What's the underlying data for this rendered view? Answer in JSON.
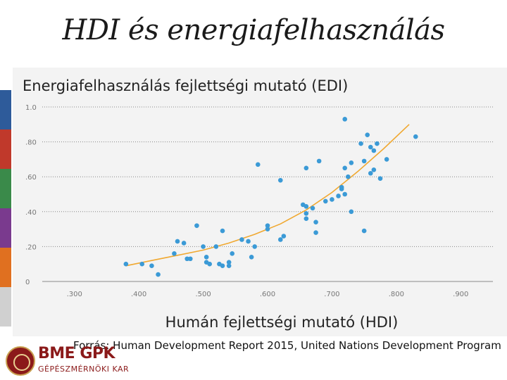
{
  "slide": {
    "title": "HDI és energiafelhasználás",
    "subtitle": "Energiafelhasználás fejlettségi mutató (EDI)",
    "source": "Forrás: Human Development Report 2015, United Nations Development Program"
  },
  "logo": {
    "text_main": "BME GPK",
    "text_sub": "GÉPÉSZMÉRNÖKI KAR"
  },
  "colors": {
    "points": "#3b9ad6",
    "trend": "#f0a830",
    "left_bar": [
      "#2e5b9a",
      "#c0392b",
      "#3a8a4a",
      "#7a3a8e",
      "#e07020",
      "#d0d0d0"
    ]
  },
  "chart_data": {
    "type": "scatter",
    "title": "Energiafelhasználás fejlettségi mutató (EDI)",
    "xlabel": "Humán fejlettségi mutató (HDI)",
    "ylabel": "",
    "xlim": [
      0.25,
      0.95
    ],
    "ylim": [
      0,
      1.0
    ],
    "xticks": [
      0.3,
      0.4,
      0.5,
      0.6,
      0.7,
      0.8,
      0.9
    ],
    "xtick_labels": [
      ".300",
      ".400",
      ".500",
      ".600",
      ".700",
      ".800",
      ".900"
    ],
    "yticks": [
      0,
      0.2,
      0.4,
      0.6,
      0.8,
      1.0
    ],
    "ytick_labels": [
      "0",
      ".20",
      ".40",
      ".60",
      ".80",
      "1.0"
    ],
    "grid": "horizontal dotted",
    "series": [
      {
        "type": "scatter",
        "points": [
          [
            0.38,
            0.1
          ],
          [
            0.405,
            0.1
          ],
          [
            0.42,
            0.09
          ],
          [
            0.43,
            0.04
          ],
          [
            0.455,
            0.16
          ],
          [
            0.46,
            0.23
          ],
          [
            0.47,
            0.22
          ],
          [
            0.475,
            0.13
          ],
          [
            0.48,
            0.13
          ],
          [
            0.49,
            0.32
          ],
          [
            0.5,
            0.2
          ],
          [
            0.505,
            0.14
          ],
          [
            0.505,
            0.11
          ],
          [
            0.51,
            0.1
          ],
          [
            0.52,
            0.2
          ],
          [
            0.525,
            0.1
          ],
          [
            0.53,
            0.29
          ],
          [
            0.53,
            0.09
          ],
          [
            0.54,
            0.11
          ],
          [
            0.54,
            0.09
          ],
          [
            0.545,
            0.16
          ],
          [
            0.56,
            0.24
          ],
          [
            0.57,
            0.23
          ],
          [
            0.575,
            0.14
          ],
          [
            0.58,
            0.2
          ],
          [
            0.585,
            0.67
          ],
          [
            0.6,
            0.32
          ],
          [
            0.6,
            0.3
          ],
          [
            0.62,
            0.24
          ],
          [
            0.62,
            0.58
          ],
          [
            0.625,
            0.26
          ],
          [
            0.655,
            0.44
          ],
          [
            0.66,
            0.65
          ],
          [
            0.66,
            0.43
          ],
          [
            0.66,
            0.36
          ],
          [
            0.66,
            0.39
          ],
          [
            0.67,
            0.42
          ],
          [
            0.675,
            0.34
          ],
          [
            0.675,
            0.28
          ],
          [
            0.68,
            0.69
          ],
          [
            0.69,
            0.46
          ],
          [
            0.7,
            0.47
          ],
          [
            0.71,
            0.49
          ],
          [
            0.715,
            0.54
          ],
          [
            0.715,
            0.53
          ],
          [
            0.72,
            0.93
          ],
          [
            0.72,
            0.65
          ],
          [
            0.72,
            0.5
          ],
          [
            0.725,
            0.6
          ],
          [
            0.73,
            0.68
          ],
          [
            0.73,
            0.4
          ],
          [
            0.745,
            0.79
          ],
          [
            0.75,
            0.69
          ],
          [
            0.75,
            0.29
          ],
          [
            0.755,
            0.84
          ],
          [
            0.76,
            0.77
          ],
          [
            0.76,
            0.62
          ],
          [
            0.765,
            0.75
          ],
          [
            0.765,
            0.64
          ],
          [
            0.77,
            0.79
          ],
          [
            0.775,
            0.59
          ],
          [
            0.785,
            0.7
          ],
          [
            0.83,
            0.83
          ]
        ]
      },
      {
        "type": "trendline",
        "x": [
          0.38,
          0.42,
          0.46,
          0.5,
          0.54,
          0.58,
          0.62,
          0.66,
          0.7,
          0.74,
          0.78,
          0.82
        ],
        "y": [
          0.09,
          0.12,
          0.15,
          0.18,
          0.22,
          0.27,
          0.33,
          0.41,
          0.51,
          0.63,
          0.76,
          0.9
        ]
      }
    ]
  }
}
